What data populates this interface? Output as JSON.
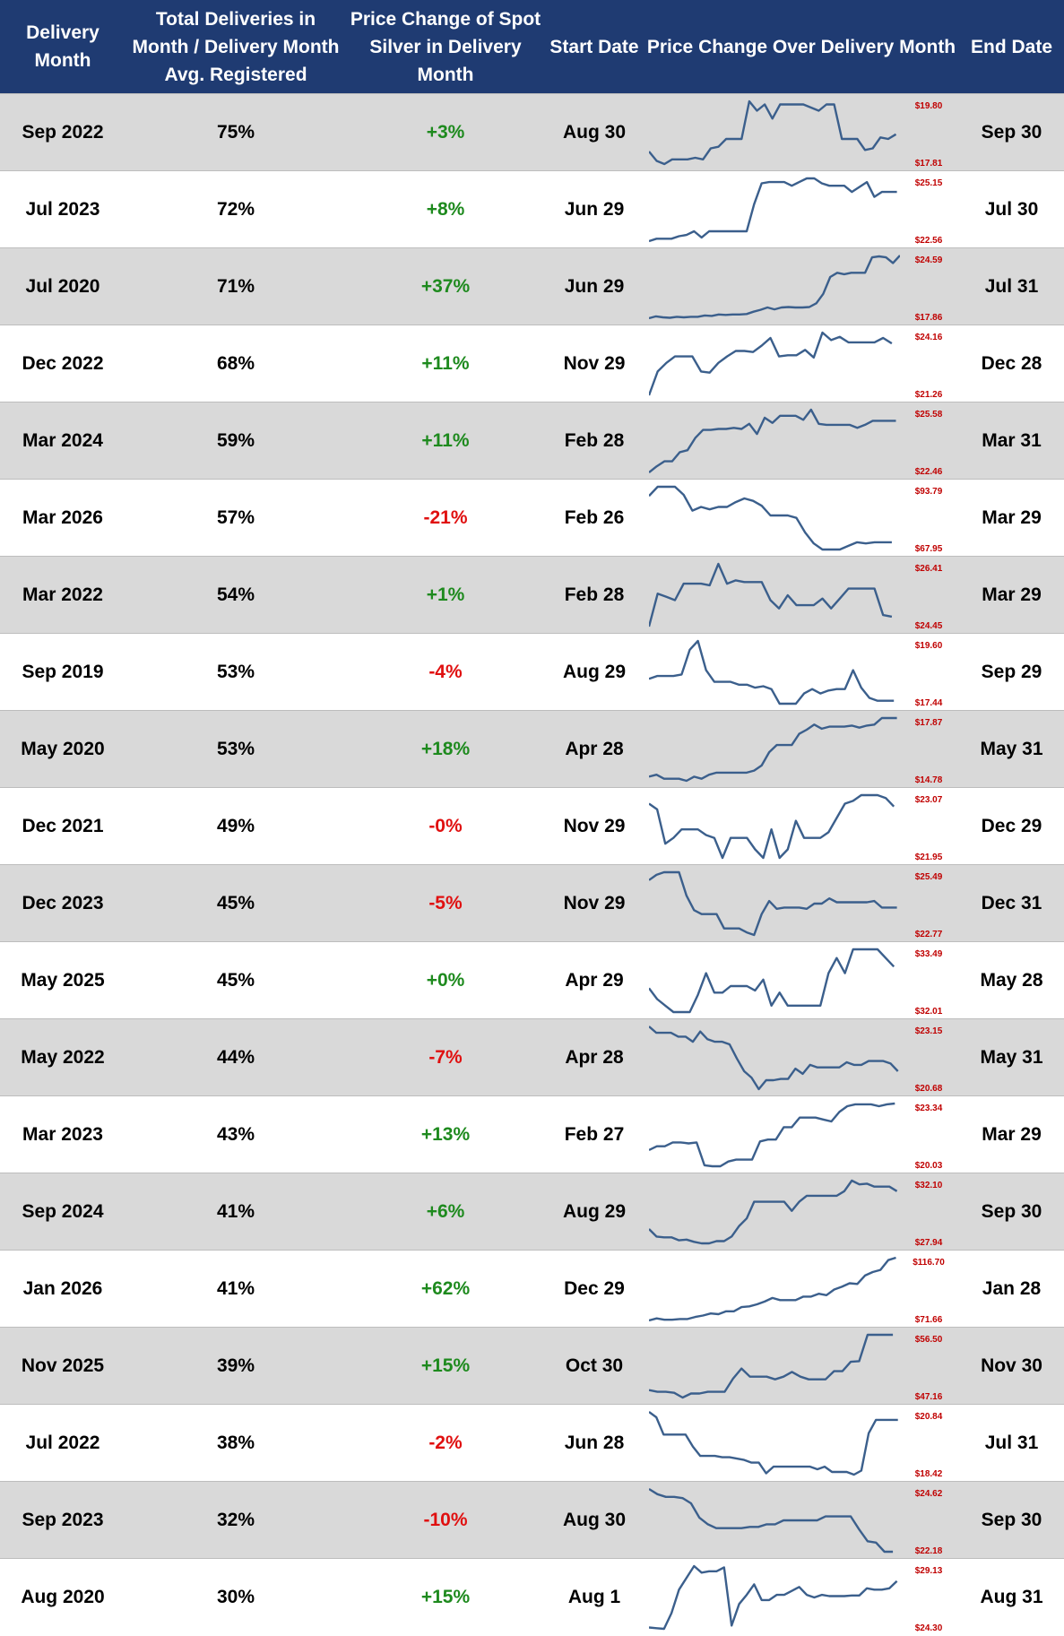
{
  "header": {
    "delivery_month": "Delivery Month",
    "total_deliveries": "Total Deliveries in Month / Delivery Month Avg. Registered",
    "price_change": "Price Change of Spot Silver in Delivery Month",
    "start_date": "Start Date",
    "price_chart": "Price Change Over Delivery Month",
    "end_date": "End Date"
  },
  "colors": {
    "header_bg": "#1f3b72",
    "row_shade": "#d9d9d9",
    "positive": "#1e8a1e",
    "negative": "#e01010",
    "sparkline": "#3b5f8c",
    "minmax_label": "#c00000"
  },
  "chart_data": {
    "type": "table",
    "columns": [
      "Delivery Month",
      "Total Deliveries in Month / Delivery Month Avg. Registered",
      "Price Change of Spot Silver in Delivery Month",
      "Start Date",
      "Price Change Over Delivery Month",
      "End Date"
    ],
    "rows": [
      {
        "month": "Sep 2022",
        "pct": "75%",
        "change": "+3%",
        "start": "Aug 30",
        "end": "Sep 30",
        "max": "$19.80",
        "min": "$17.81",
        "prices": [
          18.2,
          17.9,
          17.8,
          17.95,
          17.95,
          17.95,
          18.0,
          17.95,
          18.3,
          18.35,
          18.6,
          18.6,
          18.6,
          19.8,
          19.5,
          19.7,
          19.25,
          19.7,
          19.7,
          19.7,
          19.7,
          19.6,
          19.5,
          19.7,
          19.7,
          18.6,
          18.6,
          18.6,
          18.25,
          18.3,
          18.65,
          18.6,
          18.75
        ]
      },
      {
        "month": "Jul 2023",
        "pct": "72%",
        "change": "+8%",
        "start": "Jun 29",
        "end": "Jul 30",
        "max": "$25.15",
        "min": "$22.56",
        "prices": [
          22.6,
          22.7,
          22.7,
          22.7,
          22.8,
          22.85,
          23.0,
          22.75,
          23.0,
          23.0,
          23.0,
          23.0,
          23.0,
          23.0,
          24.1,
          24.95,
          25.0,
          25.0,
          25.0,
          24.85,
          25.0,
          25.15,
          25.15,
          24.95,
          24.85,
          24.85,
          24.85,
          24.6,
          24.8,
          25.0,
          24.4,
          24.6,
          24.6,
          24.6
        ]
      },
      {
        "month": "Jul 2020",
        "pct": "71%",
        "change": "+37%",
        "start": "Jun 29",
        "end": "Jul 31",
        "max": "$24.59",
        "min": "$17.86",
        "prices": [
          17.9,
          18.1,
          18.0,
          17.95,
          18.05,
          18.0,
          18.05,
          18.05,
          18.2,
          18.15,
          18.3,
          18.25,
          18.3,
          18.3,
          18.35,
          18.6,
          18.8,
          19.05,
          18.85,
          19.05,
          19.1,
          19.05,
          19.05,
          19.1,
          19.5,
          20.5,
          22.3,
          22.75,
          22.6,
          22.75,
          22.75,
          22.75,
          24.4,
          24.5,
          24.4,
          23.8,
          24.6
        ]
      },
      {
        "month": "Dec 2022",
        "pct": "68%",
        "change": "+11%",
        "start": "Nov 29",
        "end": "Dec 28",
        "max": "$24.16",
        "min": "$21.26",
        "prices": [
          21.3,
          22.4,
          22.8,
          23.1,
          23.1,
          23.1,
          22.4,
          22.35,
          22.8,
          23.1,
          23.35,
          23.35,
          23.3,
          23.6,
          23.95,
          23.1,
          23.15,
          23.15,
          23.4,
          23.05,
          24.2,
          23.85,
          24.0,
          23.75,
          23.75,
          23.75,
          23.75,
          23.95,
          23.7
        ]
      },
      {
        "month": "Mar 2024",
        "pct": "59%",
        "change": "+11%",
        "start": "Feb 28",
        "end": "Mar 31",
        "max": "$25.58",
        "min": "$22.46",
        "prices": [
          22.5,
          22.8,
          23.05,
          23.05,
          23.5,
          23.6,
          24.2,
          24.6,
          24.6,
          24.65,
          24.65,
          24.7,
          24.65,
          24.9,
          24.4,
          25.2,
          24.95,
          25.3,
          25.3,
          25.3,
          25.1,
          25.6,
          24.9,
          24.85,
          24.85,
          24.85,
          24.85,
          24.7,
          24.85,
          25.05,
          25.05,
          25.05,
          25.05
        ]
      },
      {
        "month": "Mar 2026",
        "pct": "57%",
        "change": "-21%",
        "start": "Feb 26",
        "end": "Mar 29",
        "max": "$93.79",
        "min": "$67.95",
        "prices": [
          90.0,
          93.8,
          93.8,
          93.8,
          90.5,
          84.0,
          85.5,
          84.5,
          85.5,
          85.5,
          87.5,
          89.0,
          88.0,
          86.0,
          82.0,
          82.0,
          82.0,
          81.0,
          75.0,
          70.5,
          68.0,
          68.0,
          68.0,
          69.5,
          71.0,
          70.5,
          71.0,
          71.0,
          71.0
        ]
      },
      {
        "month": "Mar 2022",
        "pct": "54%",
        "change": "+1%",
        "start": "Feb 28",
        "end": "Mar 29",
        "max": "$26.41",
        "min": "$24.45",
        "prices": [
          24.5,
          25.5,
          25.4,
          25.3,
          25.8,
          25.8,
          25.8,
          25.75,
          26.4,
          25.8,
          25.9,
          25.85,
          25.85,
          25.85,
          25.3,
          25.05,
          25.45,
          25.15,
          25.15,
          25.15,
          25.35,
          25.05,
          25.35,
          25.65,
          25.65,
          25.65,
          25.65,
          24.85,
          24.8
        ]
      },
      {
        "month": "Sep 2019",
        "pct": "53%",
        "change": "-4%",
        "start": "Aug 29",
        "end": "Sep 29",
        "max": "$19.60",
        "min": "$17.44",
        "prices": [
          18.3,
          18.4,
          18.4,
          18.4,
          18.45,
          19.3,
          19.6,
          18.6,
          18.2,
          18.2,
          18.2,
          18.1,
          18.1,
          18.0,
          18.05,
          17.95,
          17.45,
          17.45,
          17.45,
          17.8,
          17.95,
          17.8,
          17.9,
          17.95,
          17.95,
          18.6,
          18.0,
          17.65,
          17.55,
          17.55,
          17.55
        ]
      },
      {
        "month": "May 2020",
        "pct": "53%",
        "change": "+18%",
        "start": "Apr 28",
        "end": "May 31",
        "max": "$17.87",
        "min": "$14.78",
        "prices": [
          15.0,
          15.1,
          14.9,
          14.9,
          14.9,
          14.8,
          15.0,
          14.9,
          15.1,
          15.2,
          15.2,
          15.2,
          15.2,
          15.2,
          15.3,
          15.55,
          16.2,
          16.55,
          16.55,
          16.55,
          17.1,
          17.3,
          17.55,
          17.35,
          17.45,
          17.45,
          17.45,
          17.5,
          17.4,
          17.5,
          17.55,
          17.87,
          17.87,
          17.87
        ]
      },
      {
        "month": "Dec 2021",
        "pct": "49%",
        "change": "-0%",
        "start": "Nov 29",
        "end": "Dec 29",
        "max": "$23.07",
        "min": "$21.95",
        "prices": [
          22.9,
          22.8,
          22.2,
          22.3,
          22.45,
          22.45,
          22.45,
          22.35,
          22.3,
          21.95,
          22.3,
          22.3,
          22.3,
          22.1,
          21.95,
          22.45,
          21.95,
          22.1,
          22.6,
          22.3,
          22.3,
          22.3,
          22.4,
          22.65,
          22.9,
          22.95,
          23.05,
          23.05,
          23.05,
          23.0,
          22.85
        ]
      },
      {
        "month": "Dec 2023",
        "pct": "45%",
        "change": "-5%",
        "start": "Nov 29",
        "end": "Dec 31",
        "max": "$25.49",
        "min": "$22.77",
        "prices": [
          25.2,
          25.4,
          25.5,
          25.5,
          25.5,
          24.6,
          24.05,
          23.9,
          23.9,
          23.9,
          23.35,
          23.35,
          23.35,
          23.2,
          23.1,
          23.9,
          24.4,
          24.1,
          24.15,
          24.15,
          24.15,
          24.1,
          24.3,
          24.3,
          24.5,
          24.35,
          24.35,
          24.35,
          24.35,
          24.35,
          24.4,
          24.15,
          24.15,
          24.15
        ]
      },
      {
        "month": "May 2025",
        "pct": "45%",
        "change": "+0%",
        "start": "Apr 29",
        "end": "May 28",
        "max": "$33.49",
        "min": "$32.01",
        "prices": [
          32.55,
          32.3,
          32.15,
          32.0,
          32.0,
          32.0,
          32.4,
          32.9,
          32.45,
          32.45,
          32.6,
          32.6,
          32.6,
          32.5,
          32.75,
          32.15,
          32.45,
          32.15,
          32.15,
          32.15,
          32.15,
          32.15,
          32.9,
          33.25,
          32.9,
          33.45,
          33.45,
          33.45,
          33.45,
          33.25,
          33.05
        ]
      },
      {
        "month": "May 2022",
        "pct": "44%",
        "change": "-7%",
        "start": "Apr 28",
        "end": "May 31",
        "max": "$23.15",
        "min": "$20.68",
        "prices": [
          23.15,
          22.9,
          22.9,
          22.9,
          22.75,
          22.75,
          22.55,
          22.95,
          22.65,
          22.55,
          22.55,
          22.45,
          21.9,
          21.4,
          21.15,
          20.7,
          21.05,
          21.05,
          21.1,
          21.1,
          21.5,
          21.3,
          21.65,
          21.55,
          21.55,
          21.55,
          21.55,
          21.75,
          21.65,
          21.65,
          21.8,
          21.8,
          21.8,
          21.7,
          21.4
        ]
      },
      {
        "month": "Mar 2023",
        "pct": "43%",
        "change": "+13%",
        "start": "Feb 27",
        "end": "Mar 29",
        "max": "$23.34",
        "min": "$20.03",
        "prices": [
          20.9,
          21.1,
          21.1,
          21.3,
          21.3,
          21.25,
          21.3,
          20.1,
          20.05,
          20.05,
          20.3,
          20.4,
          20.4,
          20.4,
          21.35,
          21.45,
          21.45,
          22.1,
          22.1,
          22.6,
          22.6,
          22.6,
          22.5,
          22.4,
          22.9,
          23.2,
          23.3,
          23.3,
          23.3,
          23.2,
          23.3,
          23.34
        ]
      },
      {
        "month": "Sep 2024",
        "pct": "41%",
        "change": "+6%",
        "start": "Aug 29",
        "end": "Sep 30",
        "max": "$32.10",
        "min": "$27.94",
        "prices": [
          28.9,
          28.4,
          28.35,
          28.35,
          28.15,
          28.2,
          28.05,
          27.95,
          27.95,
          28.1,
          28.1,
          28.4,
          29.1,
          29.6,
          30.7,
          30.7,
          30.7,
          30.7,
          30.7,
          30.1,
          30.7,
          31.1,
          31.1,
          31.1,
          31.1,
          31.1,
          31.4,
          32.1,
          31.85,
          31.9,
          31.7,
          31.7,
          31.7,
          31.4
        ]
      },
      {
        "month": "Jan 2026",
        "pct": "41%",
        "change": "+62%",
        "start": "Dec 29",
        "end": "Jan 28",
        "max": "$116.70",
        "min": "$71.66",
        "prices": [
          72.0,
          73.5,
          72.5,
          72.5,
          73.0,
          73.0,
          74.5,
          75.5,
          77.0,
          76.5,
          78.5,
          78.5,
          81.5,
          82.0,
          83.5,
          85.5,
          88.0,
          86.5,
          86.5,
          86.5,
          89.0,
          89.0,
          91.0,
          90.0,
          94.0,
          96.0,
          98.5,
          98.0,
          104.0,
          106.5,
          108.0,
          115.0,
          116.7
        ]
      },
      {
        "month": "Nov 2025",
        "pct": "39%",
        "change": "+15%",
        "start": "Oct 30",
        "end": "Nov 30",
        "max": "$56.50",
        "min": "$47.16",
        "prices": [
          48.3,
          48.05,
          48.05,
          47.9,
          47.2,
          47.8,
          47.8,
          48.05,
          48.05,
          48.05,
          50.0,
          51.5,
          50.3,
          50.3,
          50.3,
          49.9,
          50.3,
          51.0,
          50.3,
          49.9,
          49.9,
          49.9,
          51.1,
          51.1,
          52.5,
          52.6,
          56.5,
          56.5,
          56.5,
          56.5
        ]
      },
      {
        "month": "Jul 2022",
        "pct": "38%",
        "change": "-2%",
        "start": "Jun 28",
        "end": "Jul 31",
        "max": "$20.84",
        "min": "$18.42",
        "prices": [
          20.8,
          20.6,
          19.95,
          19.95,
          19.95,
          19.95,
          19.5,
          19.15,
          19.15,
          19.15,
          19.1,
          19.1,
          19.05,
          19.0,
          18.9,
          18.9,
          18.5,
          18.75,
          18.75,
          18.75,
          18.75,
          18.75,
          18.75,
          18.65,
          18.75,
          18.55,
          18.55,
          18.55,
          18.45,
          18.6,
          20.0,
          20.5,
          20.5,
          20.5,
          20.5
        ]
      },
      {
        "month": "Sep 2023",
        "pct": "32%",
        "change": "-10%",
        "start": "Aug 30",
        "end": "Sep 30",
        "max": "$24.62",
        "min": "$22.18",
        "prices": [
          24.6,
          24.4,
          24.3,
          24.3,
          24.25,
          24.05,
          23.5,
          23.25,
          23.1,
          23.1,
          23.1,
          23.1,
          23.15,
          23.15,
          23.25,
          23.25,
          23.4,
          23.4,
          23.4,
          23.4,
          23.4,
          23.55,
          23.55,
          23.55,
          23.55,
          23.05,
          22.6,
          22.55,
          22.2,
          22.2
        ]
      },
      {
        "month": "Aug 2020",
        "pct": "30%",
        "change": "+15%",
        "start": "Aug 1",
        "end": "Aug 31",
        "max": "$29.13",
        "min": "$24.30",
        "prices": [
          24.4,
          24.35,
          24.3,
          25.5,
          27.3,
          28.2,
          29.1,
          28.6,
          28.7,
          28.7,
          29.0,
          24.55,
          26.2,
          26.9,
          27.7,
          26.5,
          26.5,
          26.9,
          26.9,
          27.2,
          27.5,
          26.9,
          26.7,
          26.9,
          26.8,
          26.8,
          26.8,
          26.85,
          26.85,
          27.4,
          27.3,
          27.3,
          27.4,
          27.95
        ]
      }
    ]
  }
}
